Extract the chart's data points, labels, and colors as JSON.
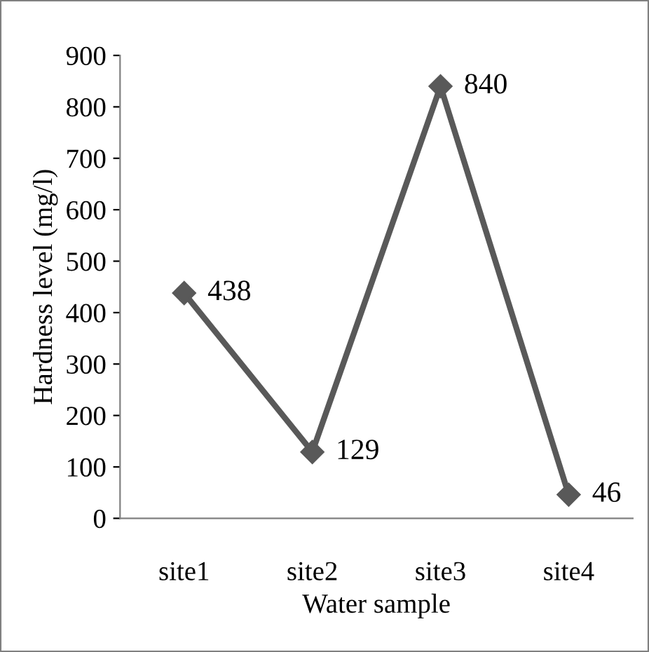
{
  "chart_data": {
    "type": "line",
    "xlabel": "Water sample",
    "ylabel": "Hardness level (mg/l)",
    "categories": [
      "site1",
      "site2",
      "site3",
      "site4"
    ],
    "series": [
      {
        "color": "#595959",
        "values": [
          438,
          129,
          840,
          46
        ]
      }
    ],
    "ylim": [
      0,
      900
    ],
    "yticks": [
      0,
      100,
      200,
      300,
      400,
      500,
      600,
      700,
      800,
      900
    ],
    "grid": false,
    "legend": false,
    "marker": "diamond",
    "line_style": "solid",
    "data_labels": true
  }
}
